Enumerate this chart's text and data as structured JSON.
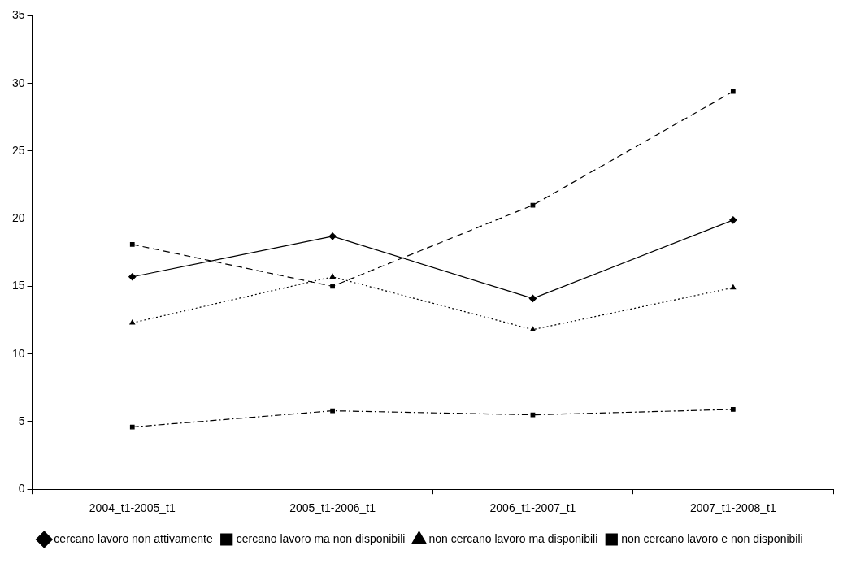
{
  "chart_data": {
    "type": "line",
    "categories": [
      "2004_t1-2005_t1",
      "2005_t1-2006_t1",
      "2006_t1-2007_t1",
      "2007_t1-2008_t1"
    ],
    "series": [
      {
        "name": "cercano lavoro non attivamente",
        "color": "#000000",
        "marker": "diamond",
        "line_style": "solid",
        "values": [
          15.7,
          18.7,
          14.1,
          19.9
        ]
      },
      {
        "name": "cercano lavoro ma non disponibili",
        "color": "#000000",
        "marker": "square",
        "line_style": "dashed",
        "values": [
          18.1,
          15.0,
          21.0,
          29.4
        ]
      },
      {
        "name": "non cercano lavoro ma disponibili",
        "color": "#000000",
        "marker": "triangle",
        "line_style": "dotted",
        "values": [
          12.3,
          15.7,
          11.8,
          14.9
        ]
      },
      {
        "name": "non cercano lavoro e non disponibili",
        "color": "#000000",
        "marker": "square",
        "line_style": "dashdot",
        "values": [
          4.6,
          5.8,
          5.5,
          5.9
        ]
      }
    ],
    "ylim": [
      0,
      35
    ],
    "yticks": [
      0,
      5,
      10,
      15,
      20,
      25,
      30,
      35
    ],
    "grid": false,
    "legend": "bottom"
  }
}
